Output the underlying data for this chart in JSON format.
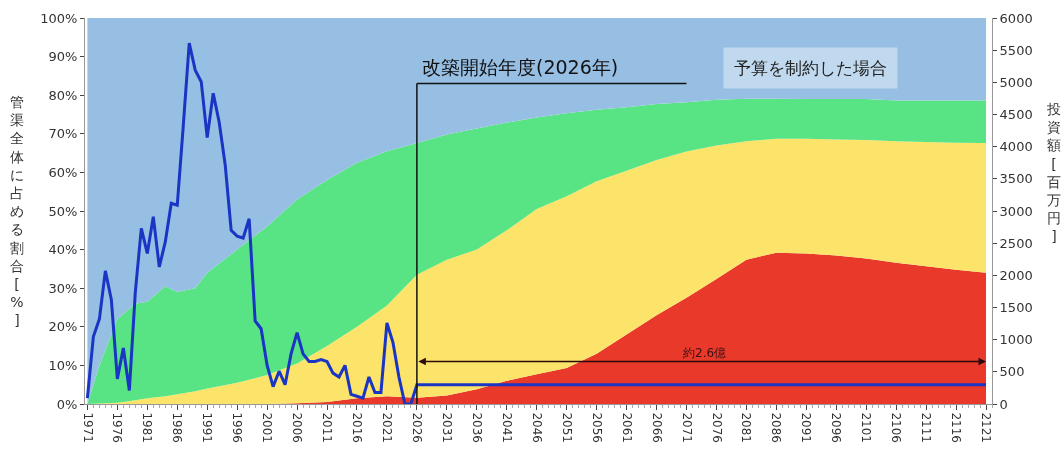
{
  "chart_data": {
    "type": "area",
    "stacked": true,
    "ylabel": "管渠全体に占める割合[%]",
    "y2label": "投資額[百万円]",
    "x": [
      1971,
      1973,
      1976,
      1979,
      1981,
      1984,
      1986,
      1989,
      1991,
      1996,
      2001,
      2006,
      2011,
      2016,
      2021,
      2026,
      2031,
      2036,
      2041,
      2046,
      2051,
      2056,
      2061,
      2066,
      2071,
      2076,
      2081,
      2086,
      2091,
      2096,
      2101,
      2106,
      2111,
      2116,
      2121
    ],
    "series": [
      {
        "color": "#e8392b",
        "values": [
          0,
          0,
          0,
          0,
          0,
          0,
          0,
          0,
          0,
          0,
          0,
          0.2,
          0.5,
          1.5,
          2,
          1.6,
          2.2,
          3.8,
          6,
          7.7,
          9.3,
          13,
          18,
          23,
          27.5,
          32.4,
          37.4,
          39.2,
          39,
          38.5,
          37.7,
          36.6,
          35.7,
          34.8,
          34
        ]
      },
      {
        "color": "#fce46a",
        "values": [
          0,
          0.1,
          0.3,
          1,
          1.5,
          2,
          2.5,
          3.3,
          4,
          5.5,
          7.5,
          10.3,
          14.5,
          18.5,
          23.5,
          31.9,
          35.2,
          36.2,
          39,
          42.8,
          44.5,
          44.7,
          42.4,
          40.2,
          37.9,
          34.6,
          30.7,
          29.5,
          29.7,
          30,
          30.7,
          31.5,
          32.2,
          32.9,
          33.6
        ]
      },
      {
        "color": "#58e384",
        "values": [
          0,
          9.9,
          21.7,
          25,
          25,
          28.5,
          26.5,
          26.7,
          30,
          34.5,
          38.5,
          42.5,
          43,
          42.5,
          40,
          34.1,
          32.4,
          31.4,
          27.9,
          23.7,
          21.5,
          18.5,
          16.5,
          14.5,
          12.8,
          11.8,
          11,
          10.4,
          10.3,
          10.5,
          10.6,
          10.5,
          10.7,
          10.9,
          11
        ]
      },
      {
        "color": "#97bfe4",
        "values": [
          100,
          90,
          78,
          74,
          73.5,
          69.5,
          71,
          70,
          66,
          60,
          54,
          47,
          42,
          37.5,
          34.5,
          32.4,
          30.2,
          28.6,
          27.1,
          25.8,
          24.7,
          23.8,
          23.1,
          22.3,
          21.8,
          21.2,
          20.9,
          20.9,
          21,
          21,
          21,
          21.4,
          21.4,
          21.4,
          21.4
        ]
      },
      {
        "type": "line",
        "axis": "y2",
        "color": "#1a35c4",
        "x": [
          1971,
          1972,
          1973,
          1974,
          1975,
          1976,
          1977,
          1978,
          1979,
          1980,
          1981,
          1982,
          1983,
          1984,
          1985,
          1986,
          1987,
          1988,
          1989,
          1990,
          1991,
          1992,
          1993,
          1994,
          1995,
          1996,
          1997,
          1998,
          1999,
          2000,
          2001,
          2002,
          2003,
          2004,
          2005,
          2006,
          2007,
          2008,
          2009,
          2010,
          2011,
          2012,
          2013,
          2014,
          2015,
          2016,
          2017,
          2018,
          2019,
          2020,
          2021,
          2022,
          2023,
          2024,
          2025,
          2026,
          2121
        ],
        "values": [
          90,
          1050,
          1320,
          2070,
          1620,
          390,
          870,
          210,
          1740,
          2730,
          2340,
          2910,
          2130,
          2520,
          3120,
          3090,
          4320,
          5610,
          5190,
          5010,
          4140,
          4830,
          4380,
          3720,
          2700,
          2610,
          2580,
          2880,
          1290,
          1170,
          600,
          270,
          510,
          300,
          780,
          1110,
          780,
          660,
          660,
          690,
          660,
          480,
          420,
          600,
          150,
          120,
          90,
          420,
          180,
          180,
          1260,
          960,
          420,
          0,
          0,
          300,
          300
        ]
      }
    ],
    "xlim": [
      1970.6,
      2122
    ],
    "xticks": [
      1971,
      1976,
      1981,
      1986,
      1991,
      1996,
      2001,
      2006,
      2011,
      2016,
      2021,
      2026,
      2031,
      2036,
      2041,
      2046,
      2051,
      2056,
      2061,
      2066,
      2071,
      2076,
      2081,
      2086,
      2091,
      2096,
      2101,
      2106,
      2111,
      2116,
      2121
    ],
    "ylim": [
      0,
      100
    ],
    "yticks": [
      {
        "value": 0,
        "label": "0%"
      },
      {
        "value": 10,
        "label": "10%"
      },
      {
        "value": 20,
        "label": "20%"
      },
      {
        "value": 30,
        "label": "30%"
      },
      {
        "value": 40,
        "label": "40%"
      },
      {
        "value": 50,
        "label": "50%"
      },
      {
        "value": 60,
        "label": "60%"
      },
      {
        "value": 70,
        "label": "70%"
      },
      {
        "value": 80,
        "label": "80%"
      },
      {
        "value": 90,
        "label": "90%"
      },
      {
        "value": 100,
        "label": "100%"
      }
    ],
    "y2lim": [
      0,
      6000
    ],
    "y2ticks": [
      0,
      500,
      1000,
      1500,
      2000,
      2500,
      3000,
      3500,
      4000,
      4500,
      5000,
      5500,
      6000
    ],
    "ref_lines": [
      {
        "axis": "x",
        "value": 2026,
        "label": "改築開始年度(2026年)",
        "color": "#111111"
      }
    ],
    "annotations": [
      "予算を制約した場合",
      "約2.6億"
    ],
    "grid": false,
    "legend": false
  }
}
